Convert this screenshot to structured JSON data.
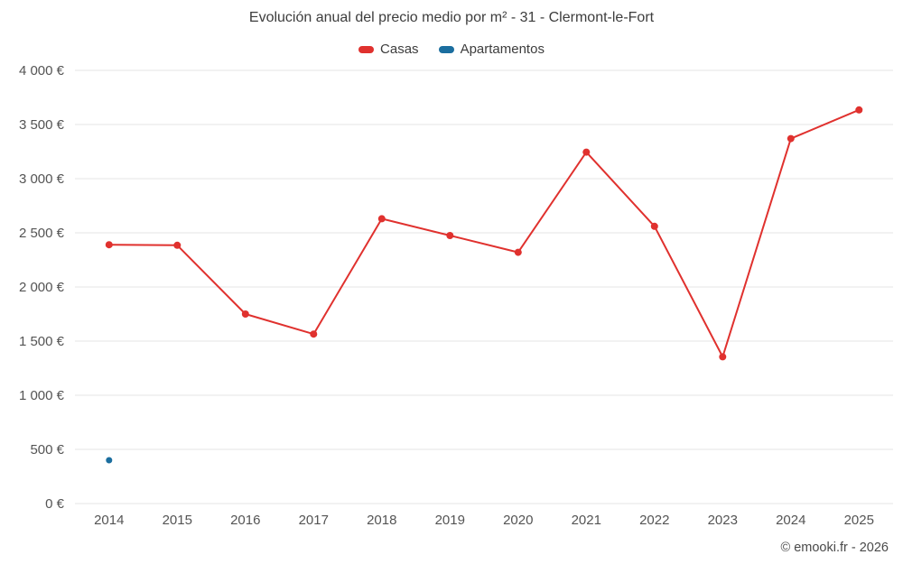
{
  "title": "Evolución anual del precio medio por m² - 31 - Clermont-le-Fort",
  "legend": [
    {
      "label": "Casas",
      "color": "#e0312e"
    },
    {
      "label": "Apartamentos",
      "color": "#1b6e9f"
    }
  ],
  "footer": "© emooki.fr - 2026",
  "chart_data": {
    "type": "line",
    "title": "Evolución anual del precio medio por m² - 31 - Clermont-le-Fort",
    "xlabel": "",
    "ylabel": "",
    "x": [
      2014,
      2015,
      2016,
      2017,
      2018,
      2019,
      2020,
      2021,
      2022,
      2023,
      2024,
      2025
    ],
    "series": [
      {
        "name": "Casas",
        "color": "#e0312e",
        "marker_radius": 4,
        "values": [
          2390,
          2385,
          1750,
          1565,
          2630,
          2475,
          2320,
          3245,
          2560,
          1355,
          3370,
          3635
        ]
      },
      {
        "name": "Apartamentos",
        "color": "#1b6e9f",
        "marker_radius": 3.5,
        "values": [
          400,
          null,
          null,
          null,
          null,
          null,
          null,
          null,
          null,
          null,
          null,
          null
        ]
      }
    ],
    "ylim": [
      0,
      4000
    ],
    "ytick_step": 500,
    "ytick_suffix": " €",
    "grid": "horizontal-only",
    "gridline_color": "#e6e6e6",
    "legend_position": "top"
  }
}
